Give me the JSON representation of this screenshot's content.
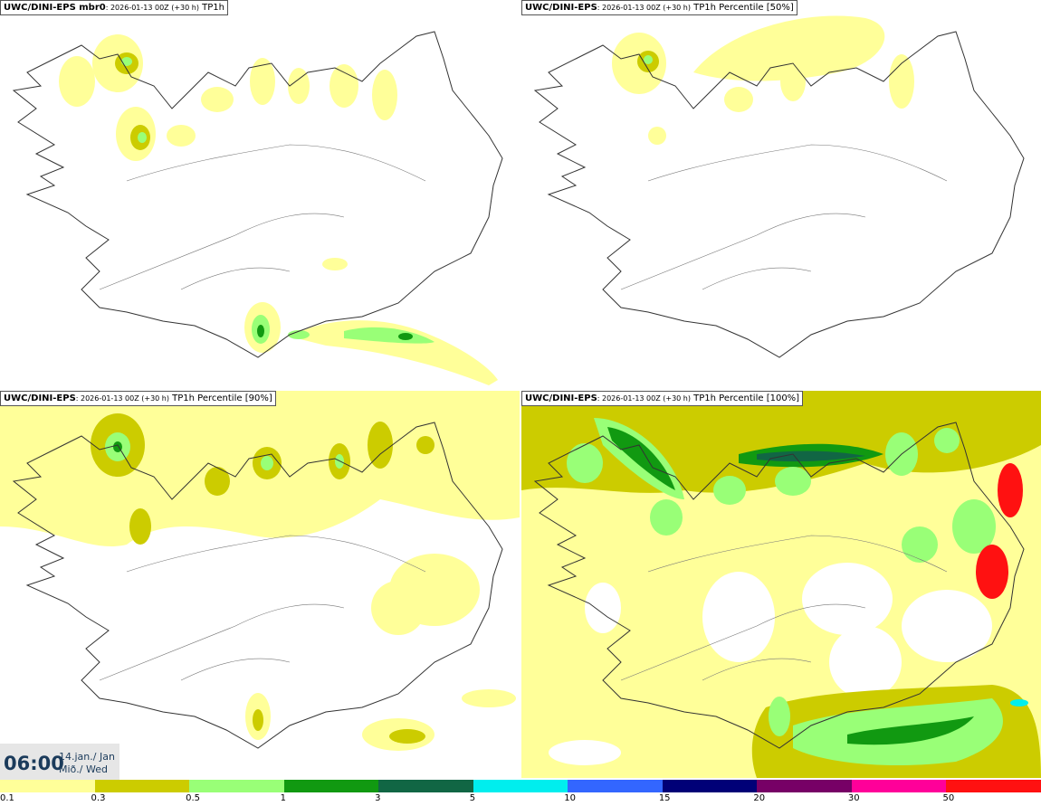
{
  "panels": [
    {
      "model": "UWC/DINI-EPS mbr0",
      "meta": ": 2026-01-13 00Z (+30 h)",
      "param": " TP1h"
    },
    {
      "model": "UWC/DINI-EPS",
      "meta": ": 2026-01-13 00Z (+30 h)",
      "param": " TP1h Percentile [50%]"
    },
    {
      "model": "UWC/DINI-EPS",
      "meta": ": 2026-01-13 00Z (+30 h)",
      "param": " TP1h Percentile [90%]"
    },
    {
      "model": "UWC/DINI-EPS",
      "meta": ": 2026-01-13 00Z (+30 h)",
      "param": " TP1h Percentile [100%]"
    }
  ],
  "time": {
    "clock": "06:00",
    "date_line": "14.jan./ Jan",
    "day_line": "Mið./ Wed"
  },
  "colorbar": {
    "colors": [
      "#ffff99",
      "#cccc00",
      "#99ff77",
      "#119911",
      "#116644",
      "#00eeee",
      "#3366ff",
      "#000077",
      "#770066",
      "#ff0099",
      "#ff1111"
    ],
    "ticks": [
      "0.1",
      "0.3",
      "0.5",
      "1",
      "3",
      "5",
      "10",
      "15",
      "20",
      "30",
      "50"
    ]
  }
}
